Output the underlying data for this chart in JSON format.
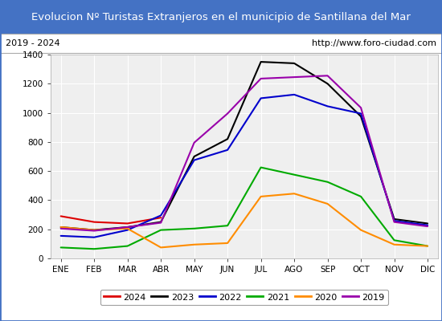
{
  "title": "Evolucion Nº Turistas Extranjeros en el municipio de Santillana del Mar",
  "subtitle_left": "2019 - 2024",
  "subtitle_right": "http://www.foro-ciudad.com",
  "title_bg_color": "#4472c4",
  "title_text_color": "#ffffff",
  "subtitle_bg_color": "#ffffff",
  "subtitle_text_color": "#000000",
  "plot_bg_color": "#efefef",
  "months": [
    "ENE",
    "FEB",
    "MAR",
    "ABR",
    "MAY",
    "JUN",
    "JUL",
    "AGO",
    "SEP",
    "OCT",
    "NOV",
    "DIC"
  ],
  "ylim": [
    0,
    1400
  ],
  "yticks": [
    0,
    200,
    400,
    600,
    800,
    1000,
    1200,
    1400
  ],
  "series": {
    "2024": {
      "color": "#dd0000",
      "data": [
        290,
        250,
        240,
        280,
        null,
        null,
        null,
        null,
        null,
        null,
        null,
        null
      ]
    },
    "2023": {
      "color": "#000000",
      "data": [
        215,
        195,
        215,
        250,
        700,
        820,
        1350,
        1340,
        1200,
        975,
        270,
        240
      ]
    },
    "2022": {
      "color": "#0000cc",
      "data": [
        155,
        145,
        195,
        295,
        675,
        745,
        1100,
        1125,
        1045,
        995,
        258,
        228
      ]
    },
    "2021": {
      "color": "#00aa00",
      "data": [
        75,
        65,
        85,
        195,
        205,
        225,
        625,
        575,
        525,
        425,
        125,
        85
      ]
    },
    "2020": {
      "color": "#ff8c00",
      "data": [
        215,
        195,
        205,
        75,
        95,
        105,
        425,
        445,
        375,
        195,
        95,
        85
      ]
    },
    "2019": {
      "color": "#9900aa",
      "data": [
        205,
        190,
        215,
        245,
        795,
        995,
        1235,
        1245,
        1255,
        1035,
        250,
        220
      ]
    }
  },
  "legend_order": [
    "2024",
    "2023",
    "2022",
    "2021",
    "2020",
    "2019"
  ],
  "outer_border_color": "#4472c4",
  "outer_border_lw": 2.0
}
